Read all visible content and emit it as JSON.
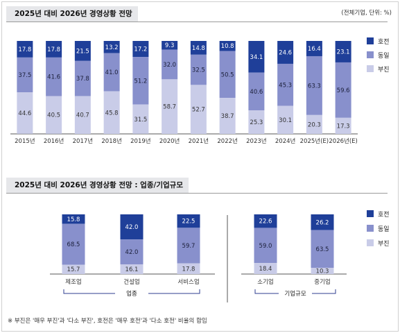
{
  "chart_data": [
    {
      "type": "bar",
      "stacked": true,
      "title": "2025년 대비 2026년 경영상황 전망",
      "unit_note": "(전체기업, 단위: %)",
      "categories": [
        "2015년",
        "2016년",
        "2017년",
        "2018년",
        "2019년",
        "2020년",
        "2021년",
        "2022년",
        "2023년",
        "2024년",
        "2025년(E)",
        "2026년(E)"
      ],
      "series": [
        {
          "name": "호전",
          "color": "#1f3f99",
          "values": [
            17.8,
            17.8,
            21.5,
            13.2,
            17.2,
            9.3,
            14.8,
            10.8,
            34.1,
            24.6,
            16.4,
            23.1
          ]
        },
        {
          "name": "동일",
          "color": "#8890cc",
          "values": [
            37.5,
            41.6,
            37.8,
            41.0,
            51.2,
            32.0,
            32.5,
            50.5,
            40.6,
            45.3,
            63.3,
            59.6
          ]
        },
        {
          "name": "부진",
          "color": "#c9cce8",
          "values": [
            44.6,
            40.5,
            40.7,
            45.8,
            31.5,
            58.7,
            52.7,
            38.7,
            25.3,
            30.1,
            20.3,
            17.3
          ]
        }
      ],
      "legend": [
        "호전",
        "동일",
        "부진"
      ],
      "legend_position": "right",
      "ylim": [
        0,
        100
      ],
      "grid": false
    },
    {
      "type": "bar",
      "stacked": true,
      "title": "2025년 대비 2026년 경영상황 전망 : 업종/기업규모",
      "groups": [
        {
          "label": "업종",
          "categories": [
            "제조업",
            "건설업",
            "서비스업"
          ]
        },
        {
          "label": "기업규모",
          "categories": [
            "소기업",
            "중기업"
          ]
        }
      ],
      "categories": [
        "제조업",
        "건설업",
        "서비스업",
        "소기업",
        "중기업"
      ],
      "series": [
        {
          "name": "호전",
          "color": "#1f3f99",
          "values": [
            15.8,
            42.0,
            22.5,
            22.6,
            26.2
          ]
        },
        {
          "name": "동일",
          "color": "#8890cc",
          "values": [
            68.5,
            42.0,
            59.7,
            59.0,
            63.5
          ]
        },
        {
          "name": "부진",
          "color": "#c9cce8",
          "values": [
            15.7,
            16.1,
            17.8,
            18.4,
            10.3
          ]
        }
      ],
      "legend": [
        "호전",
        "동일",
        "부진"
      ],
      "legend_position": "right",
      "ylim": [
        0,
        100
      ],
      "grid": false
    }
  ],
  "footnote": "※ 부진은 '매우 부진'과 '다소 부진', 호전은 '매우 호전'과 '다소 호전' 비율의 합임"
}
